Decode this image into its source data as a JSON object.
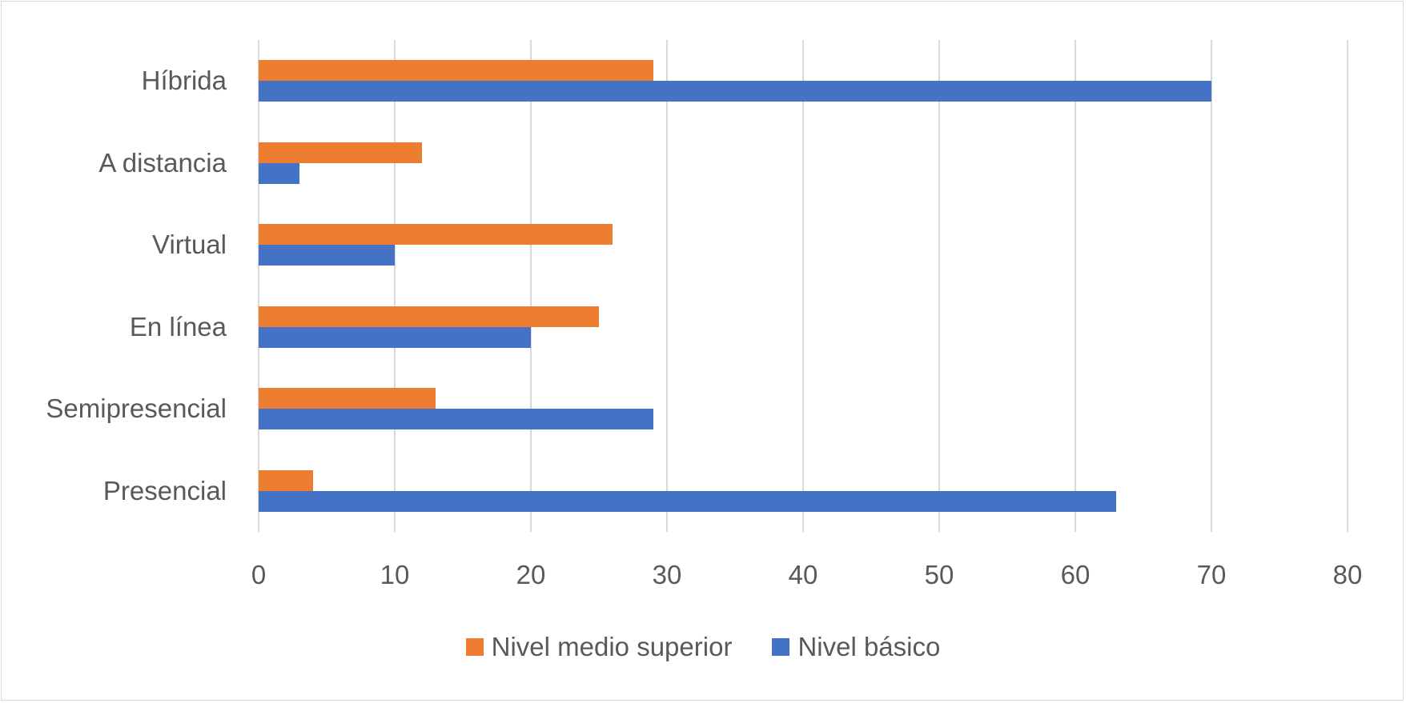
{
  "chart_data": {
    "type": "bar",
    "orientation": "horizontal",
    "title": "",
    "xlabel": "",
    "ylabel": "",
    "categories": [
      "Híbrida",
      "A distancia",
      "Virtual",
      "En línea",
      "Semipresencial",
      "Presencial"
    ],
    "series": [
      {
        "name": "Nivel medio superior",
        "color": "#ED7D31",
        "values": [
          29,
          12,
          26,
          25,
          13,
          4
        ]
      },
      {
        "name": "Nivel básico",
        "color": "#4472C4",
        "values": [
          70,
          3,
          10,
          20,
          29,
          63
        ]
      }
    ],
    "xlim": [
      0,
      80
    ],
    "xticks": [
      "0",
      "10",
      "20",
      "30",
      "40",
      "50",
      "60",
      "70",
      "80"
    ],
    "grid": true,
    "legend_position": "bottom"
  },
  "legend": {
    "items": [
      {
        "label": "Nivel medio superior",
        "color": "#ED7D31"
      },
      {
        "label": "Nivel básico",
        "color": "#4472C4"
      }
    ]
  }
}
